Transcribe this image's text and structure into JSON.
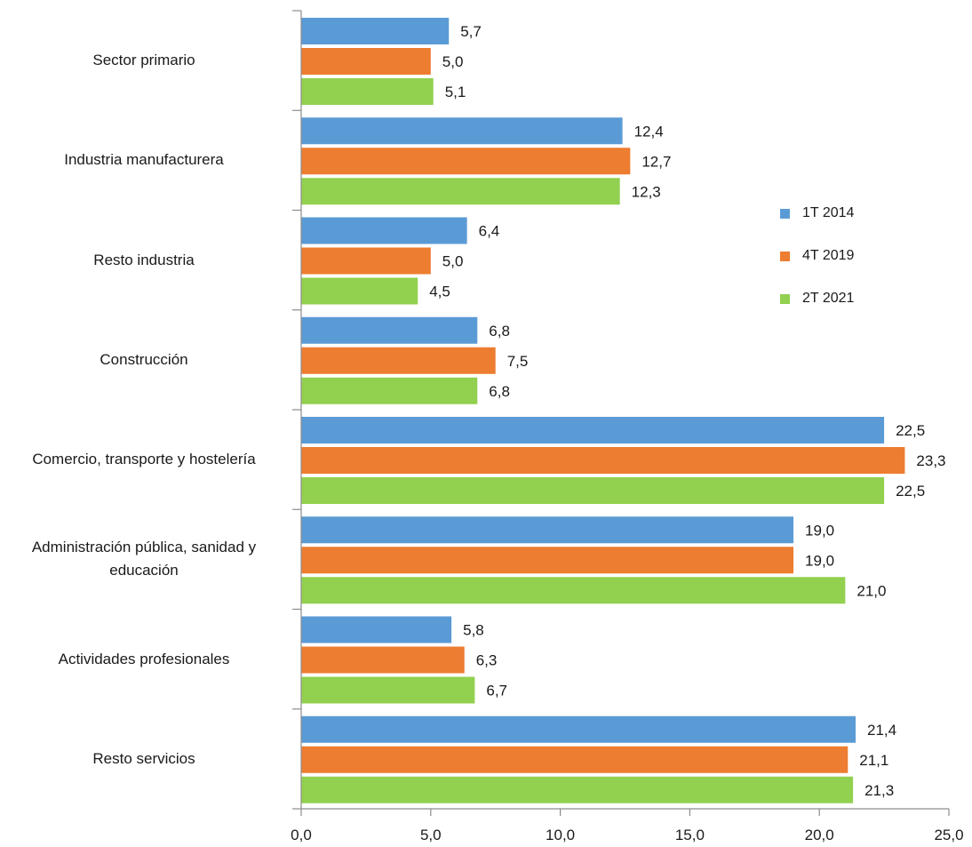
{
  "chart_data": {
    "type": "bar",
    "orientation": "horizontal",
    "categories": [
      "Sector primario",
      "Industria manufacturera",
      "Resto industria",
      "Construcción",
      "Comercio, transporte y hostelería",
      "Administración pública, sanidad y educación",
      "Actividades profesionales",
      "Resto servicios"
    ],
    "series": [
      {
        "name": "1T 2014",
        "color": "#5b9bd5",
        "values": [
          5.7,
          12.4,
          6.4,
          6.8,
          22.5,
          19.0,
          5.8,
          21.4
        ],
        "labels": [
          "5,7",
          "12,4",
          "6,4",
          "6,8",
          "22,5",
          "19,0",
          "5,8",
          "21,4"
        ]
      },
      {
        "name": "4T 2019",
        "color": "#ed7d31",
        "values": [
          5.0,
          12.7,
          5.0,
          7.5,
          23.3,
          19.0,
          6.3,
          21.1
        ],
        "labels": [
          "5,0",
          "12,7",
          "5,0",
          "7,5",
          "23,3",
          "19,0",
          "6,3",
          "21,1"
        ]
      },
      {
        "name": "2T 2021",
        "color": "#92d050",
        "values": [
          5.1,
          12.3,
          4.5,
          6.8,
          22.5,
          21.0,
          6.7,
          21.3
        ],
        "labels": [
          "5,1",
          "12,3",
          "4,5",
          "6,8",
          "22,5",
          "21,0",
          "6,7",
          "21,3"
        ]
      }
    ],
    "xlim": [
      0,
      25
    ],
    "xticks": [
      0,
      5,
      10,
      15,
      20,
      25
    ],
    "xtick_labels": [
      "0,0",
      "5,0",
      "10,0",
      "15,0",
      "20,0",
      "25,0"
    ],
    "grid": false,
    "legend_position": "right"
  }
}
